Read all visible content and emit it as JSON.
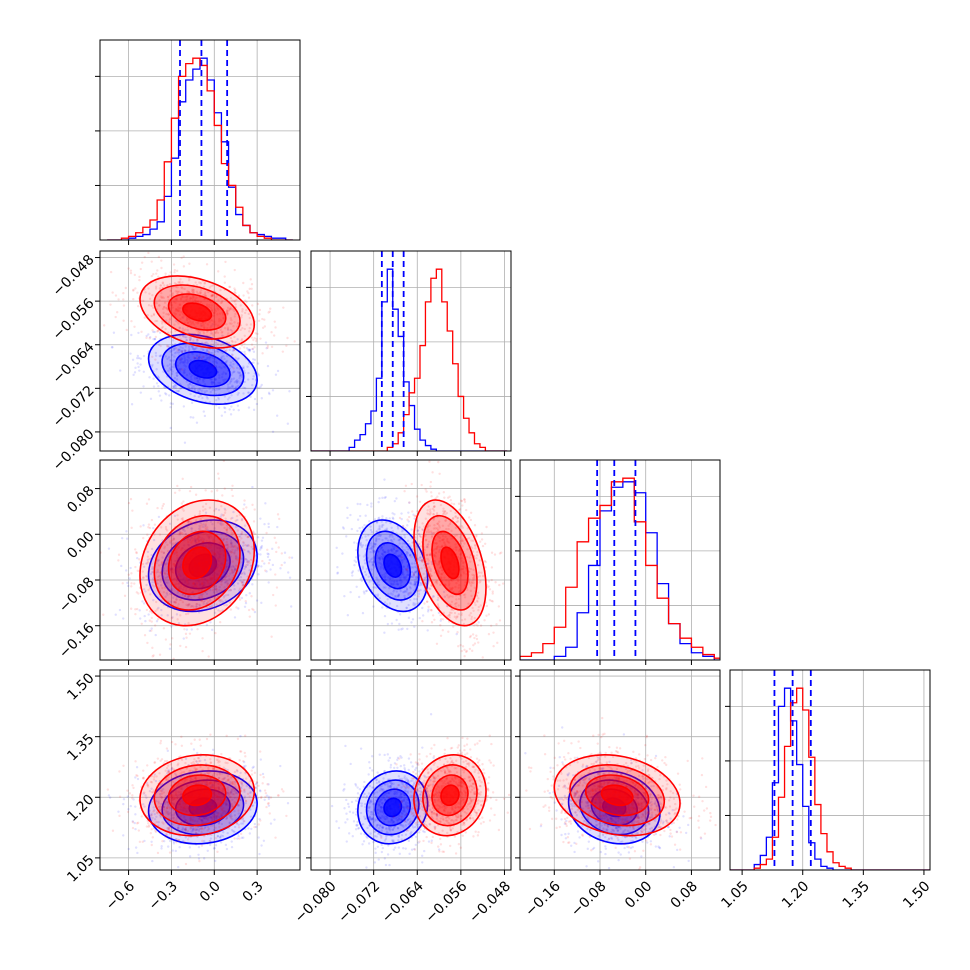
{
  "chart_data": {
    "type": "corner",
    "title": "",
    "grid": true,
    "parameters": 4,
    "series": [
      {
        "color": "#0000ff",
        "means": [
          -0.08,
          -0.0685,
          -0.055,
          1.175
        ],
        "sds": [
          0.19,
          0.0032,
          0.04,
          0.045
        ],
        "corr": [
          [
            1,
            -0.3,
            0.2,
            0.1
          ],
          [
            -0.3,
            1,
            -0.3,
            0.1
          ],
          [
            0.2,
            -0.3,
            1,
            -0.15
          ],
          [
            0.1,
            0.1,
            -0.15,
            1
          ]
        ]
      },
      {
        "color": "#ff0000",
        "means": [
          -0.12,
          -0.058,
          -0.05,
          1.205
        ],
        "sds": [
          0.2,
          0.0033,
          0.055,
          0.05
        ],
        "corr": [
          [
            1,
            -0.35,
            0.2,
            0.1
          ],
          [
            -0.35,
            1,
            -0.4,
            0.1
          ],
          [
            0.2,
            -0.4,
            1,
            -0.2
          ],
          [
            0.1,
            0.1,
            -0.2,
            1
          ]
        ]
      }
    ],
    "quantile_lines": {
      "color": "#0000ff",
      "style": "dashed",
      "values": [
        [
          -0.24,
          -0.09,
          0.09
        ],
        [
          -0.0705,
          -0.0685,
          -0.0665
        ],
        [
          -0.085,
          -0.055,
          -0.018
        ],
        [
          1.13,
          1.175,
          1.22
        ]
      ]
    },
    "histograms": [
      {
        "bins": [
          -0.75,
          -0.7,
          -0.65,
          -0.6,
          -0.55,
          -0.5,
          -0.45,
          -0.4,
          -0.35,
          -0.3,
          -0.25,
          -0.2,
          -0.15,
          -0.1,
          -0.05,
          0,
          0.05,
          0.1,
          0.15,
          0.2,
          0.25,
          0.3,
          0.35,
          0.4,
          0.45,
          0.5,
          0.55
        ],
        "blue": [
          0,
          0,
          0,
          1,
          2,
          3,
          6,
          10,
          24,
          45,
          76,
          88,
          94,
          100,
          88,
          70,
          54,
          29,
          14,
          8,
          4,
          3,
          2,
          1,
          1,
          0
        ],
        "red": [
          0,
          0,
          1,
          2,
          4,
          7,
          11,
          22,
          43,
          67,
          90,
          97,
          100,
          96,
          82,
          63,
          42,
          30,
          18,
          8,
          4,
          2,
          1,
          0,
          0,
          0
        ]
      },
      {
        "bins": [
          -0.0835,
          -0.0825,
          -0.0815,
          -0.0805,
          -0.0795,
          -0.0785,
          -0.0775,
          -0.0765,
          -0.0755,
          -0.0745,
          -0.0735,
          -0.0725,
          -0.0715,
          -0.0705,
          -0.0695,
          -0.0685,
          -0.0675,
          -0.0665,
          -0.0655,
          -0.0645,
          -0.0635,
          -0.0625,
          -0.0615,
          -0.0605,
          -0.0595,
          -0.0585,
          -0.0575,
          -0.0565,
          -0.0555,
          -0.0545,
          -0.0535,
          -0.0525,
          -0.0515,
          -0.0505,
          -0.0495,
          -0.0485,
          -0.0475
        ],
        "blue": [
          0,
          0,
          0,
          0,
          0,
          0,
          0,
          2,
          6,
          9,
          15,
          22,
          40,
          82,
          100,
          78,
          63,
          38,
          25,
          12,
          6,
          3,
          1,
          0,
          0,
          0,
          0,
          0,
          0,
          0,
          0,
          0,
          0,
          0,
          0,
          0
        ],
        "red": [
          0,
          0,
          0,
          0,
          0,
          0,
          0,
          0,
          0,
          0,
          0,
          0,
          0,
          0,
          2,
          4,
          10,
          20,
          32,
          40,
          58,
          82,
          95,
          100,
          82,
          66,
          48,
          30,
          18,
          10,
          4,
          2,
          0,
          0,
          0,
          0
        ]
      },
      {
        "bins": [
          -0.22,
          -0.2,
          -0.18,
          -0.16,
          -0.14,
          -0.12,
          -0.1,
          -0.08,
          -0.06,
          -0.04,
          -0.02,
          0,
          0.02,
          0.04,
          0.06,
          0.08,
          0.1,
          0.12,
          0.14
        ],
        "blue": [
          0,
          0,
          0,
          2,
          7,
          26,
          52,
          82,
          95,
          98,
          92,
          70,
          42,
          20,
          9,
          4,
          2,
          0
        ],
        "red": [
          2,
          4,
          9,
          18,
          40,
          65,
          78,
          85,
          98,
          100,
          76,
          52,
          34,
          20,
          12,
          7,
          3,
          1
        ]
      },
      {
        "bins": [
          1.02,
          1.035,
          1.05,
          1.065,
          1.08,
          1.095,
          1.11,
          1.125,
          1.14,
          1.155,
          1.17,
          1.185,
          1.2,
          1.215,
          1.23,
          1.245,
          1.26,
          1.275,
          1.29,
          1.305,
          1.32,
          1.335,
          1.35,
          1.365,
          1.38,
          1.395,
          1.41,
          1.425,
          1.44,
          1.455,
          1.47,
          1.485,
          1.5,
          1.515
        ],
        "blue": [
          0,
          0,
          0,
          0,
          3,
          8,
          18,
          48,
          90,
          100,
          82,
          58,
          35,
          15,
          6,
          2,
          1,
          0,
          0,
          0,
          0,
          0,
          0,
          0,
          0,
          0,
          0,
          0,
          0,
          0,
          0,
          0,
          0
        ],
        "red": [
          0,
          0,
          0,
          0,
          1,
          3,
          6,
          18,
          40,
          68,
          92,
          100,
          88,
          62,
          36,
          20,
          10,
          4,
          2,
          1,
          0,
          0,
          0,
          0,
          0,
          0,
          0,
          0,
          0,
          0,
          0,
          0,
          0
        ]
      }
    ],
    "axes": [
      {
        "lim": [
          -0.8,
          0.6
        ],
        "ticks": [
          -0.6,
          -0.3,
          0.0,
          0.3
        ],
        "tick_labels": [
          "−0.6",
          "−0.3",
          "0.0",
          "0.3"
        ]
      },
      {
        "lim": [
          -0.0835,
          -0.0468
        ],
        "ticks": [
          -0.08,
          -0.072,
          -0.064,
          -0.056,
          -0.048
        ],
        "tick_labels": [
          "−0.080",
          "−0.072",
          "−0.064",
          "−0.056",
          "−0.048"
        ]
      },
      {
        "lim": [
          -0.22,
          0.13
        ],
        "ticks": [
          -0.16,
          -0.08,
          0.0,
          0.08
        ],
        "tick_labels": [
          "−0.16",
          "−0.08",
          "0.00",
          "0.08"
        ]
      },
      {
        "lim": [
          1.02,
          1.515
        ],
        "ticks": [
          1.05,
          1.2,
          1.35,
          1.5
        ],
        "tick_labels": [
          "1.05",
          "1.20",
          "1.35",
          "1.50"
        ]
      }
    ],
    "diag_ylim": [
      0,
      110
    ],
    "diag_yticks": [
      30,
      60,
      90
    ]
  }
}
